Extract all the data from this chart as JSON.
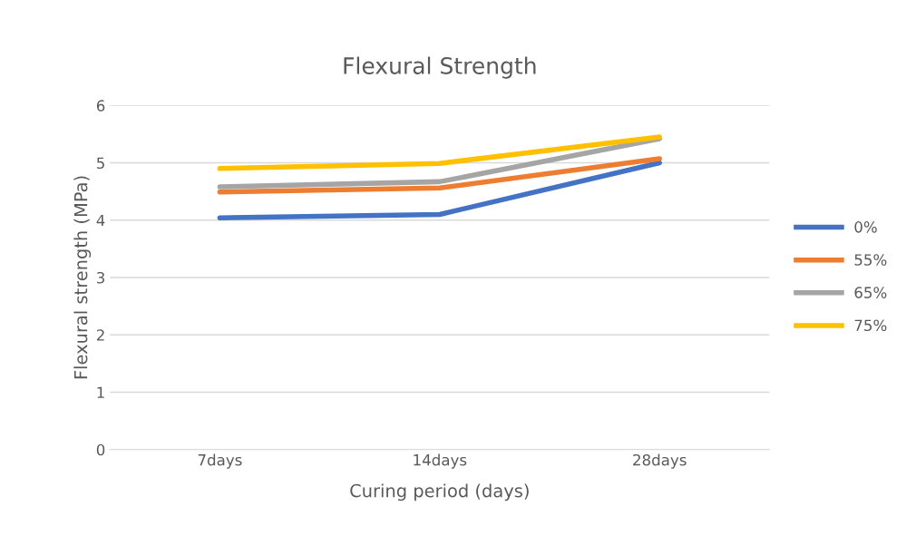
{
  "chart_data": {
    "type": "line",
    "title": "Flexural Strength",
    "xlabel": "Curing period (days)",
    "ylabel": "Flexural strength (MPa)",
    "categories": [
      "7days",
      "14days",
      "28days"
    ],
    "series": [
      {
        "name": "0%",
        "color": "#4472c4",
        "values": [
          4.04,
          4.1,
          5.0
        ]
      },
      {
        "name": "55%",
        "color": "#ed7d31",
        "values": [
          4.49,
          4.56,
          5.07
        ]
      },
      {
        "name": "65%",
        "color": "#a5a5a5",
        "values": [
          4.58,
          4.67,
          5.42
        ]
      },
      {
        "name": "75%",
        "color": "#ffc000",
        "values": [
          4.9,
          4.99,
          5.45
        ]
      }
    ],
    "ylim": [
      0,
      6
    ],
    "yticks": [
      0,
      1,
      2,
      3,
      4,
      5,
      6
    ],
    "grid": "y",
    "legend": "right",
    "marker": "none",
    "line_style": "solid"
  }
}
